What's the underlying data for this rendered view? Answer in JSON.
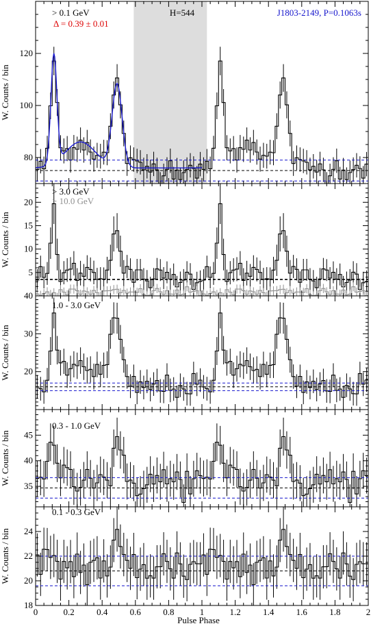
{
  "chart_data": {
    "type": "line",
    "pulsar_label": "J1803-2149, P=0.1063s",
    "xlabel": "Pulse Phase",
    "x_ticks": [
      "0",
      "0.2",
      "0.4",
      "0.6",
      "0.8",
      "1",
      "1.2",
      "1.4",
      "1.6",
      "1.8",
      "2"
    ],
    "xlim": [
      0,
      2
    ],
    "bin_width": 0.02,
    "colors": {
      "histogram": "#000000",
      "background": "#1010cc",
      "fit": "#1a1ad0",
      "secondary": "#909090",
      "highlight": "#dddddd",
      "delta_text": "#dd0000",
      "pulsar_text": "#1414cc"
    },
    "panels": [
      {
        "id": "p1",
        "energy_label": "> 0.1 GeV",
        "delta_label": "Δ = 0.39 ± 0.01",
        "h_label": "H=544",
        "ylabel": "W. Counts / bin",
        "ylim": [
          70,
          140
        ],
        "y_ticks": [
          80,
          100,
          120
        ],
        "shaded_phase": [
          0.59,
          1.03
        ],
        "background_levels": [
          71,
          75,
          79
        ],
        "profile": {
          "baseline": 76,
          "noise": 2.4,
          "peaks": [
            {
              "center": 0.11,
              "amp": 40,
              "width": 0.018
            },
            {
              "center": 0.49,
              "amp": 32,
              "width": 0.03
            },
            {
              "center": 0.27,
              "amp": 10,
              "width": 0.09
            }
          ]
        },
        "fit": {
          "baseline": 76,
          "peaks": [
            {
              "center": 0.11,
              "amp": 42,
              "width": 0.018
            },
            {
              "center": 0.49,
              "amp": 32,
              "width": 0.03
            },
            {
              "center": 0.27,
              "amp": 10,
              "width": 0.09
            }
          ]
        }
      },
      {
        "id": "p2",
        "energy_label": "> 3.0 GeV",
        "energy_label2": "> 10.0 GeV",
        "ylabel": "W. Counts / bin",
        "ylim": [
          0,
          24
        ],
        "y_ticks": [
          5,
          10,
          15,
          20
        ],
        "background_levels": [
          3.5
        ],
        "profile": {
          "baseline": 3.8,
          "noise": 1.2,
          "peaks": [
            {
              "center": 0.11,
              "amp": 15,
              "width": 0.015
            },
            {
              "center": 0.48,
              "amp": 10,
              "width": 0.03
            },
            {
              "center": 0.27,
              "amp": 1.5,
              "width": 0.08
            }
          ]
        },
        "profile2": {
          "baseline": 0.7,
          "noise": 0.5,
          "peaks": []
        }
      },
      {
        "id": "p3",
        "energy_label": "1.0 - 3.0 GeV",
        "ylabel": "W. Counts / bin",
        "ylim": [
          10,
          40
        ],
        "y_ticks": [
          20,
          30,
          40
        ],
        "background_levels": [
          15,
          16,
          17
        ],
        "profile": {
          "baseline": 16,
          "noise": 1.6,
          "peaks": [
            {
              "center": 0.11,
              "amp": 16,
              "width": 0.018
            },
            {
              "center": 0.48,
              "amp": 18,
              "width": 0.03
            },
            {
              "center": 0.28,
              "amp": 6,
              "width": 0.1
            }
          ]
        }
      },
      {
        "id": "p4",
        "energy_label": "0.3 - 1.0 GeV",
        "ylabel": "W. Counts / bin",
        "ylim": [
          31,
          50
        ],
        "y_ticks": [
          35,
          40,
          45
        ],
        "background_levels": [
          32.7,
          34.7,
          36.7
        ],
        "profile": {
          "baseline": 36,
          "noise": 1.8,
          "peaks": [
            {
              "center": 0.11,
              "amp": 8,
              "width": 0.02
            },
            {
              "center": 0.49,
              "amp": 6,
              "width": 0.025
            },
            {
              "center": 0.25,
              "amp": 1.5,
              "width": 0.1
            }
          ]
        }
      },
      {
        "id": "p5",
        "energy_label": "0.1 - 0.3 GeV",
        "ylabel": "W. Counts / bin",
        "ylim": [
          18,
          26
        ],
        "y_ticks": [
          18,
          20,
          22,
          24
        ],
        "background_levels": [
          19.6,
          20.8,
          22
        ],
        "profile": {
          "baseline": 21.2,
          "noise": 0.9,
          "peaks": [
            {
              "center": 0.49,
              "amp": 1.8,
              "width": 0.02
            }
          ]
        }
      }
    ]
  }
}
